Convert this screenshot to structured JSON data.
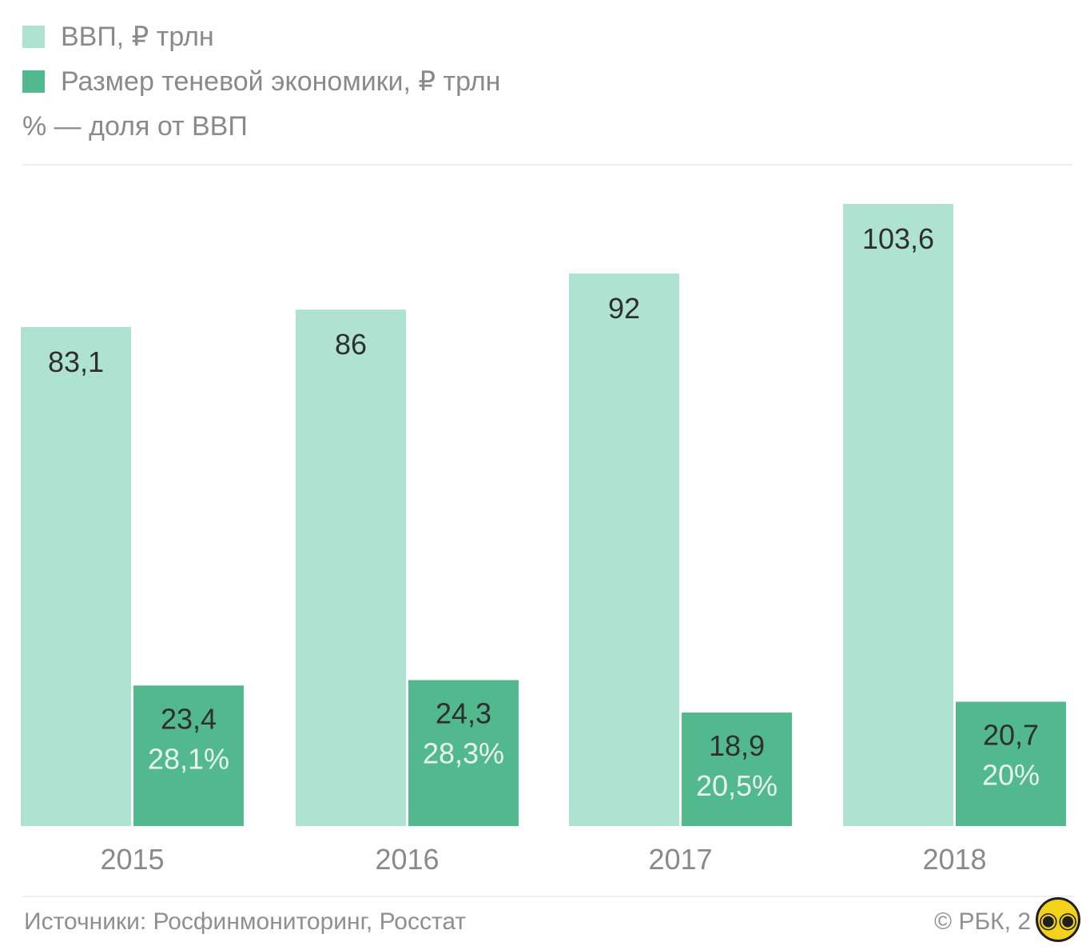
{
  "legend": {
    "items": [
      {
        "label": "ВВП, ₽ трлн",
        "color": "#aee3d1"
      },
      {
        "label": "Размер теневой экономики, ₽ трлн",
        "color": "#52b88e"
      }
    ],
    "note": "% — доля от ВВП"
  },
  "chart_data": {
    "type": "bar",
    "categories": [
      "2015",
      "2016",
      "2017",
      "2018"
    ],
    "series": [
      {
        "name": "ВВП, ₽ трлн",
        "values": [
          83.1,
          86,
          92,
          103.6
        ],
        "labels": [
          "83,1",
          "86",
          "92",
          "103,6"
        ]
      },
      {
        "name": "Размер теневой экономики, ₽ трлн",
        "values": [
          23.4,
          24.3,
          18.9,
          20.7
        ],
        "labels": [
          "23,4",
          "24,3",
          "18,9",
          "20,7"
        ],
        "share_labels": [
          "28,1%",
          "28,3%",
          "20,5%",
          "20%"
        ]
      }
    ],
    "ylim": [
      0,
      103.6
    ],
    "grid": false,
    "colors": {
      "gdp": "#aee3d1",
      "shadow": "#52b88e",
      "axis_text": "#8a8a8a",
      "value_text": "#2f2f2f",
      "share_text": "#e9f7f1"
    }
  },
  "footer": {
    "sources": "Источники: Росфинмониторинг, Росстат",
    "credit": "© РБК, 2"
  },
  "badge": {
    "icon": "eyes-badge-icon",
    "glyph": "◉◉"
  }
}
